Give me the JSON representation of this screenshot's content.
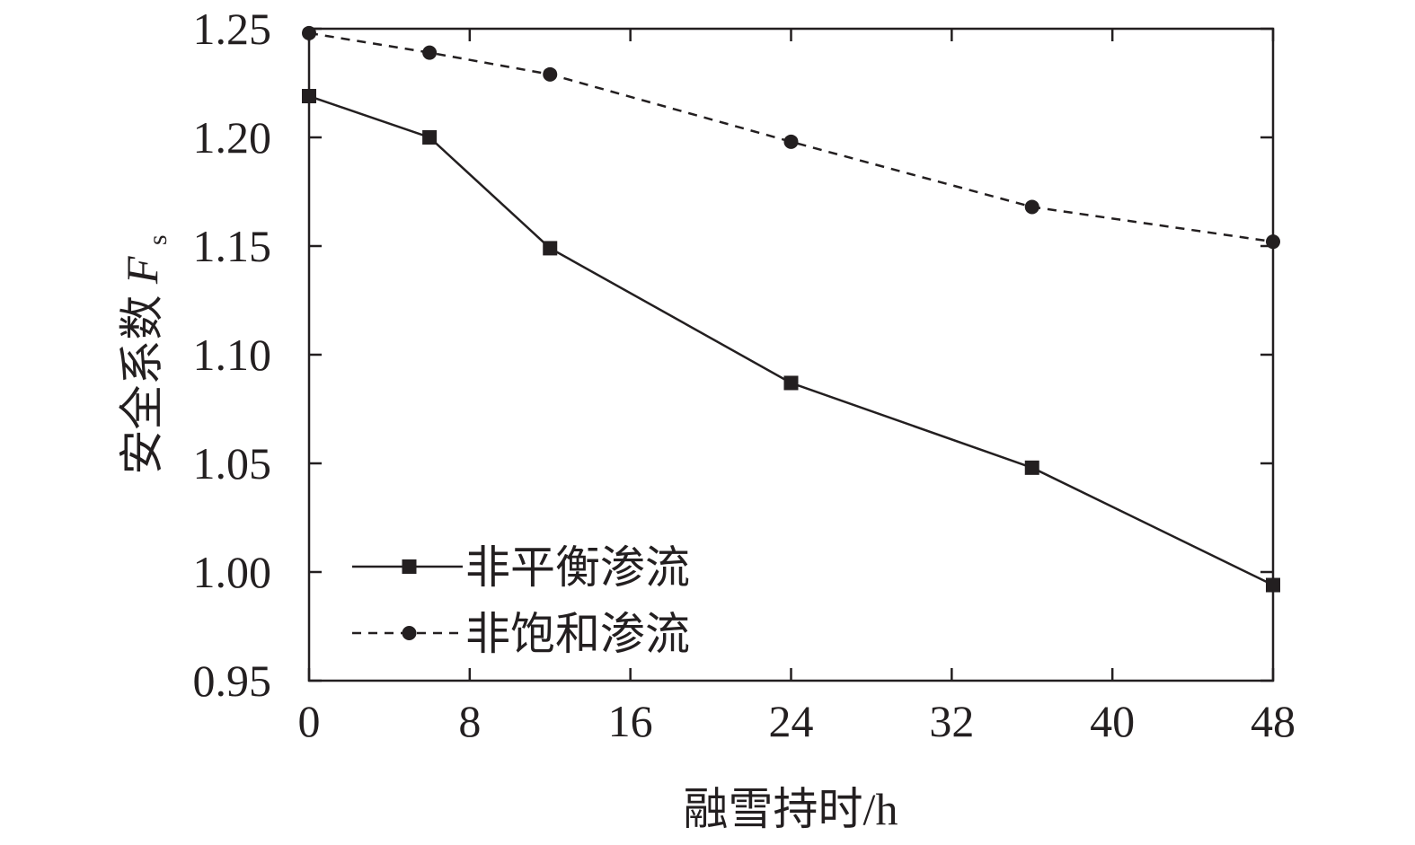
{
  "chart_data": {
    "type": "line",
    "xlabel": "融雪持时/h",
    "ylabel_main": "安全系数 ",
    "ylabel_var": "F",
    "ylabel_sub": "s",
    "x_ticks": [
      0,
      8,
      16,
      24,
      32,
      40,
      48
    ],
    "x_tick_labels": [
      "0",
      "8",
      "16",
      "24",
      "32",
      "40",
      "48"
    ],
    "y_ticks": [
      0.95,
      1.0,
      1.05,
      1.1,
      1.15,
      1.2,
      1.25
    ],
    "y_tick_labels": [
      "0.95",
      "1.00",
      "1.05",
      "1.10",
      "1.15",
      "1.20",
      "1.25"
    ],
    "xlim": [
      0,
      48
    ],
    "ylim": [
      0.95,
      1.25
    ],
    "grid": false,
    "legend_position": "bottom-left",
    "series": [
      {
        "name": "非平衡渗流",
        "marker": "square",
        "line_style": "solid",
        "color": "#231f20",
        "x": [
          0,
          6,
          12,
          24,
          36,
          48
        ],
        "y": [
          1.219,
          1.2,
          1.149,
          1.087,
          1.048,
          0.994
        ]
      },
      {
        "name": "非饱和渗流",
        "marker": "circle",
        "line_style": "dashed",
        "color": "#231f20",
        "x": [
          0,
          6,
          12,
          24,
          36,
          48
        ],
        "y": [
          1.248,
          1.239,
          1.229,
          1.198,
          1.168,
          1.152
        ]
      }
    ]
  }
}
